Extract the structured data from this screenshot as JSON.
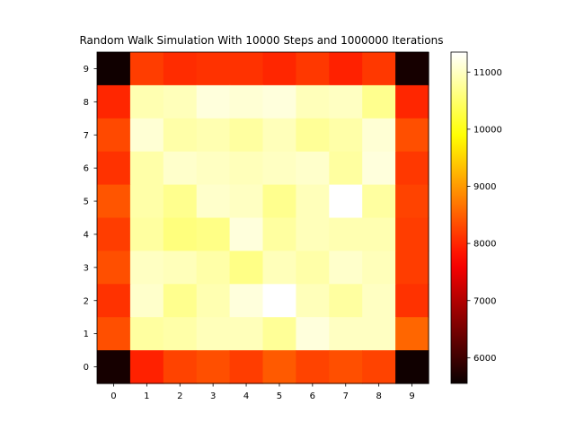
{
  "chart_data": {
    "type": "heatmap",
    "title": "Random Walk Simulation With 10000 Steps and 1000000 Iterations",
    "xlabel": "",
    "ylabel": "",
    "x_categories": [
      "0",
      "1",
      "2",
      "3",
      "4",
      "5",
      "6",
      "7",
      "8",
      "9"
    ],
    "y_categories": [
      "0",
      "1",
      "2",
      "3",
      "4",
      "5",
      "6",
      "7",
      "8",
      "9"
    ],
    "colormap": "hot",
    "colorbar": {
      "vmin": 5550,
      "vmax": 11350,
      "ticks": [
        6000,
        7000,
        8000,
        9000,
        10000,
        11000
      ],
      "tick_labels": [
        "6000",
        "7000",
        "8000",
        "9000",
        "10000",
        "11000"
      ]
    },
    "rows_top_to_bottom": [
      {
        "y": "9",
        "values": [
          5600,
          8200,
          8050,
          8100,
          8100,
          8000,
          8150,
          7950,
          8150,
          5650
        ]
      },
      {
        "y": "8",
        "values": [
          8000,
          10900,
          10950,
          11150,
          11100,
          11150,
          10950,
          11000,
          10700,
          8000
        ]
      },
      {
        "y": "7",
        "values": [
          8300,
          11100,
          10850,
          10900,
          10800,
          10950,
          10750,
          10850,
          11100,
          8350
        ]
      },
      {
        "y": "6",
        "values": [
          8100,
          10850,
          11050,
          11000,
          10950,
          11000,
          11050,
          10800,
          11150,
          8150
        ]
      },
      {
        "y": "5",
        "values": [
          8400,
          10850,
          10700,
          11050,
          11000,
          10700,
          10950,
          11350,
          10800,
          8250
        ]
      },
      {
        "y": "4",
        "values": [
          8200,
          10800,
          10600,
          10650,
          11150,
          10800,
          10950,
          10900,
          10900,
          8200
        ]
      },
      {
        "y": "3",
        "values": [
          8350,
          11000,
          10950,
          10850,
          10650,
          10950,
          10850,
          11050,
          10950,
          8200
        ]
      },
      {
        "y": "2",
        "values": [
          8100,
          11050,
          10700,
          10900,
          11150,
          11350,
          10950,
          10800,
          11000,
          8100
        ]
      },
      {
        "y": "1",
        "values": [
          8350,
          10800,
          10850,
          10950,
          10950,
          10750,
          11150,
          11000,
          11000,
          8550
        ]
      },
      {
        "y": "0",
        "values": [
          5650,
          7950,
          8250,
          8350,
          8200,
          8450,
          8250,
          8350,
          8250,
          5600
        ]
      }
    ]
  }
}
